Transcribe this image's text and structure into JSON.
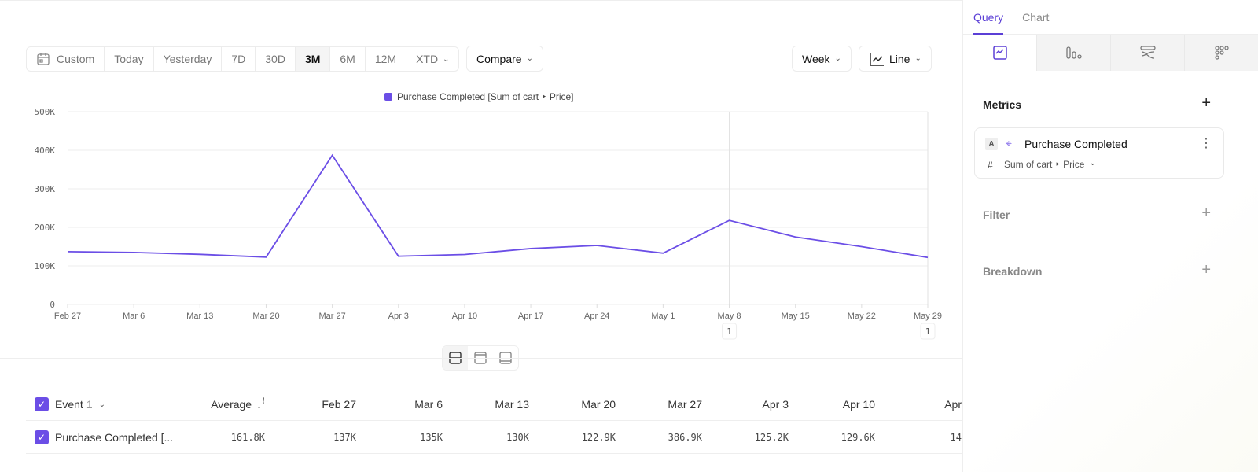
{
  "toolbar": {
    "date_ranges": [
      "Custom",
      "Today",
      "Yesterday",
      "7D",
      "30D",
      "3M",
      "6M",
      "12M",
      "XTD"
    ],
    "active_range": "3M",
    "compare": "Compare",
    "interval": "Week",
    "chart_type": "Line"
  },
  "chart_data": {
    "type": "line",
    "legend": "Purchase Completed [Sum of cart ‣ Price]",
    "legend_placement": "top-center",
    "categories": [
      "Feb 27",
      "Mar 6",
      "Mar 13",
      "Mar 20",
      "Mar 27",
      "Apr 3",
      "Apr 10",
      "Apr 17",
      "Apr 24",
      "May 1",
      "May 8",
      "May 15",
      "May 22",
      "May 29"
    ],
    "series": [
      {
        "name": "Purchase Completed [Sum of cart ‣ Price]",
        "color": "#6b4ee6",
        "values": [
          137000,
          135000,
          130000,
          122900,
          386900,
          125200,
          129600,
          145000,
          153000,
          133000,
          218000,
          175000,
          150000,
          122000
        ]
      }
    ],
    "y_ticks": [
      "0",
      "100K",
      "200K",
      "300K",
      "400K",
      "500K"
    ],
    "ylim": [
      0,
      500000
    ],
    "grid": true,
    "annotations": [
      {
        "x": "May 8",
        "label": "1"
      },
      {
        "x": "May 29",
        "label": "1"
      }
    ]
  },
  "table": {
    "header": {
      "event": "Event",
      "event_count": "1",
      "average": "Average",
      "dates": [
        "Feb 27",
        "Mar 6",
        "Mar 13",
        "Mar 20",
        "Mar 27",
        "Apr 3",
        "Apr 10",
        "Apr"
      ]
    },
    "rows": [
      {
        "name": "Purchase Completed [...",
        "average": "161.8K",
        "values": [
          "137K",
          "135K",
          "130K",
          "122.9K",
          "386.9K",
          "125.2K",
          "129.6K",
          "14"
        ]
      }
    ]
  },
  "sidebar": {
    "tabs": [
      "Query",
      "Chart"
    ],
    "metrics": "Metrics",
    "metric": {
      "letter": "A",
      "name": "Purchase Completed",
      "agg_symbol": "#",
      "aggregation": "Sum of cart ‣ Price"
    },
    "filter": "Filter",
    "breakdown": "Breakdown"
  }
}
